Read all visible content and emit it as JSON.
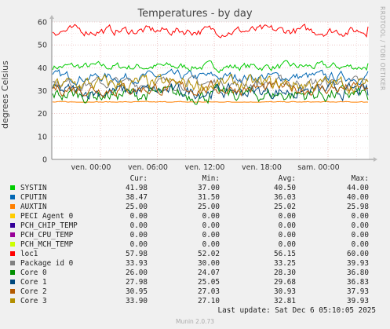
{
  "title": "Temperatures - by day",
  "side_text": "RRDTOOL / TOBI OETIKER",
  "ylabel": "degrees Celsius",
  "chart_data": {
    "type": "line",
    "title": "Temperatures - by day",
    "ylabel": "degrees Celsius",
    "ylim": [
      0,
      60
    ],
    "yticks": [
      "0",
      "10",
      "20",
      "30",
      "40",
      "50",
      "60"
    ],
    "xticks": [
      "ven. 00:00",
      "ven. 06:00",
      "ven. 12:00",
      "ven. 18:00",
      "sam. 00:00"
    ],
    "grid": true,
    "series": [
      {
        "name": "SYSTIN",
        "color": "#00cc00",
        "cur": 41.98,
        "min": 37.0,
        "avg": 40.5,
        "max": 44.0
      },
      {
        "name": "CPUTIN",
        "color": "#0066b3",
        "cur": 38.47,
        "min": 31.5,
        "avg": 36.03,
        "max": 40.0
      },
      {
        "name": "AUXTIN",
        "color": "#ff8000",
        "cur": 25.0,
        "min": 25.0,
        "avg": 25.02,
        "max": 25.98
      },
      {
        "name": "PECI Agent 0",
        "color": "#ffcc00",
        "cur": 0.0,
        "min": 0.0,
        "avg": 0.0,
        "max": 0.0
      },
      {
        "name": "PCH_CHIP_TEMP",
        "color": "#330099",
        "cur": 0.0,
        "min": 0.0,
        "avg": 0.0,
        "max": 0.0
      },
      {
        "name": "PCH_CPU_TEMP",
        "color": "#990099",
        "cur": 0.0,
        "min": 0.0,
        "avg": 0.0,
        "max": 0.0
      },
      {
        "name": "PCH_MCH_TEMP",
        "color": "#ccff00",
        "cur": 0.0,
        "min": 0.0,
        "avg": 0.0,
        "max": 0.0
      },
      {
        "name": "loc1",
        "color": "#ff0000",
        "cur": 57.98,
        "min": 52.02,
        "avg": 56.15,
        "max": 60.0
      },
      {
        "name": "Package id 0",
        "color": "#808080",
        "cur": 33.93,
        "min": 30.0,
        "avg": 33.25,
        "max": 39.93
      },
      {
        "name": "Core 0",
        "color": "#008f00",
        "cur": 26.0,
        "min": 24.07,
        "avg": 28.3,
        "max": 36.8
      },
      {
        "name": "Core 1",
        "color": "#00487d",
        "cur": 27.98,
        "min": 25.05,
        "avg": 29.68,
        "max": 36.83
      },
      {
        "name": "Core 2",
        "color": "#b35a00",
        "cur": 30.95,
        "min": 27.03,
        "avg": 30.93,
        "max": 37.93
      },
      {
        "name": "Core 3",
        "color": "#b38f00",
        "cur": 33.9,
        "min": 27.1,
        "avg": 32.81,
        "max": 39.93
      }
    ]
  },
  "legend_headers": {
    "cur": "Cur:",
    "min": "Min:",
    "avg": "Avg:",
    "max": "Max:"
  },
  "last_update": "Last update: Sat Dec  6 05:10:05 2025",
  "footer": "Munin 2.0.73"
}
